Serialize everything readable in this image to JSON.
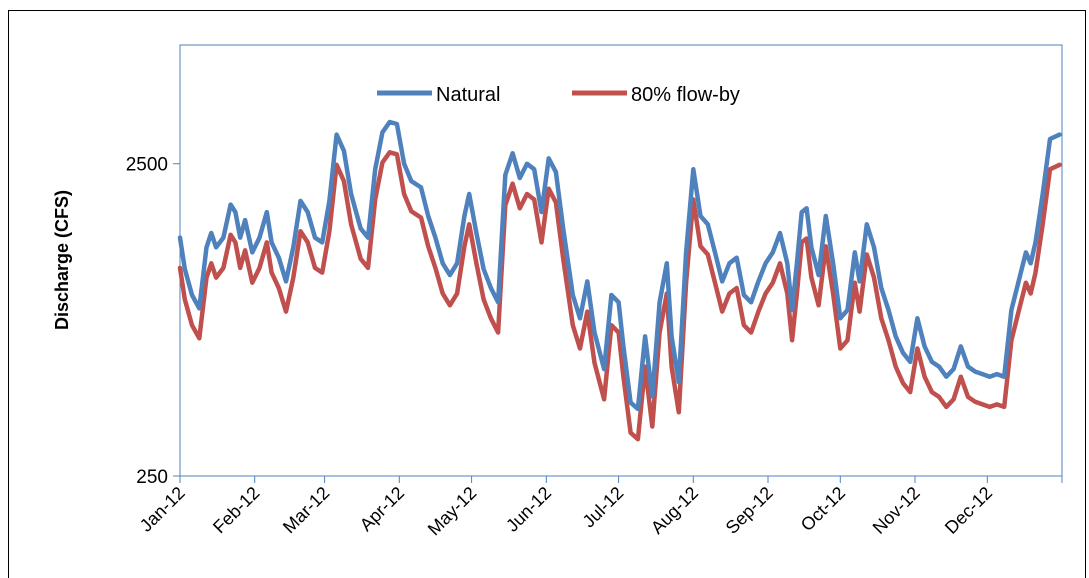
{
  "chart_data": {
    "type": "line",
    "title": "",
    "xlabel": "",
    "ylabel": "Discharge (CFS)",
    "y_scale": "log",
    "ylim": [
      250,
      6000
    ],
    "y_ticks": [
      250,
      2500
    ],
    "y_tick_labels": [
      "250",
      "2500"
    ],
    "grid": false,
    "legend_position": "top-center",
    "x_tick_labels": [
      "Jan-12",
      "Feb-12",
      "Mar-12",
      "Apr-12",
      "May-12",
      "Jun-12",
      "Jul-12",
      "Aug-12",
      "Sep-12",
      "Oct-12",
      "Nov-12",
      "Dec-12"
    ],
    "x_tick_dates": [
      "2012-01-01",
      "2012-02-01",
      "2012-03-01",
      "2012-04-01",
      "2012-05-01",
      "2012-06-01",
      "2012-07-01",
      "2012-08-01",
      "2012-09-01",
      "2012-10-01",
      "2012-11-01",
      "2012-12-01",
      "2013-01-01"
    ],
    "series": [
      {
        "name": "Natural",
        "color": "#4F81BD",
        "points": [
          [
            "2012-01-01",
            1450
          ],
          [
            "2012-01-03",
            1150
          ],
          [
            "2012-01-06",
            950
          ],
          [
            "2012-01-09",
            860
          ],
          [
            "2012-01-12",
            1350
          ],
          [
            "2012-01-14",
            1500
          ],
          [
            "2012-01-16",
            1350
          ],
          [
            "2012-01-19",
            1450
          ],
          [
            "2012-01-22",
            1850
          ],
          [
            "2012-01-24",
            1750
          ],
          [
            "2012-01-26",
            1450
          ],
          [
            "2012-01-28",
            1650
          ],
          [
            "2012-01-31",
            1300
          ],
          [
            "2012-02-03",
            1450
          ],
          [
            "2012-02-06",
            1750
          ],
          [
            "2012-02-08",
            1400
          ],
          [
            "2012-02-11",
            1250
          ],
          [
            "2012-02-14",
            1050
          ],
          [
            "2012-02-17",
            1350
          ],
          [
            "2012-02-20",
            1900
          ],
          [
            "2012-02-23",
            1750
          ],
          [
            "2012-02-26",
            1450
          ],
          [
            "2012-02-29",
            1400
          ],
          [
            "2012-03-03",
            1900
          ],
          [
            "2012-03-06",
            3100
          ],
          [
            "2012-03-09",
            2750
          ],
          [
            "2012-03-12",
            2000
          ],
          [
            "2012-03-16",
            1550
          ],
          [
            "2012-03-19",
            1450
          ],
          [
            "2012-03-22",
            2400
          ],
          [
            "2012-03-25",
            3150
          ],
          [
            "2012-03-28",
            3400
          ],
          [
            "2012-03-31",
            3350
          ],
          [
            "2012-04-03",
            2500
          ],
          [
            "2012-04-06",
            2200
          ],
          [
            "2012-04-10",
            2100
          ],
          [
            "2012-04-13",
            1700
          ],
          [
            "2012-04-16",
            1450
          ],
          [
            "2012-04-19",
            1200
          ],
          [
            "2012-04-22",
            1100
          ],
          [
            "2012-04-25",
            1200
          ],
          [
            "2012-04-28",
            1700
          ],
          [
            "2012-04-30",
            2000
          ],
          [
            "2012-05-03",
            1500
          ],
          [
            "2012-05-06",
            1150
          ],
          [
            "2012-05-09",
            1000
          ],
          [
            "2012-05-12",
            900
          ],
          [
            "2012-05-15",
            2300
          ],
          [
            "2012-05-18",
            2700
          ],
          [
            "2012-05-21",
            2250
          ],
          [
            "2012-05-24",
            2500
          ],
          [
            "2012-05-27",
            2400
          ],
          [
            "2012-05-30",
            1750
          ],
          [
            "2012-06-02",
            2600
          ],
          [
            "2012-06-05",
            2350
          ],
          [
            "2012-06-08",
            1550
          ],
          [
            "2012-06-12",
            950
          ],
          [
            "2012-06-15",
            800
          ],
          [
            "2012-06-18",
            1050
          ],
          [
            "2012-06-21",
            720
          ],
          [
            "2012-06-25",
            550
          ],
          [
            "2012-06-28",
            950
          ],
          [
            "2012-07-01",
            900
          ],
          [
            "2012-07-03",
            650
          ],
          [
            "2012-07-06",
            430
          ],
          [
            "2012-07-09",
            410
          ],
          [
            "2012-07-12",
            700
          ],
          [
            "2012-07-15",
            450
          ],
          [
            "2012-07-18",
            900
          ],
          [
            "2012-07-21",
            1200
          ],
          [
            "2012-07-23",
            700
          ],
          [
            "2012-07-26",
            500
          ],
          [
            "2012-07-29",
            1300
          ],
          [
            "2012-08-01",
            2400
          ],
          [
            "2012-08-04",
            1700
          ],
          [
            "2012-08-07",
            1600
          ],
          [
            "2012-08-10",
            1300
          ],
          [
            "2012-08-13",
            1050
          ],
          [
            "2012-08-16",
            1200
          ],
          [
            "2012-08-19",
            1250
          ],
          [
            "2012-08-22",
            950
          ],
          [
            "2012-08-25",
            900
          ],
          [
            "2012-08-28",
            1050
          ],
          [
            "2012-08-31",
            1200
          ],
          [
            "2012-09-03",
            1300
          ],
          [
            "2012-09-06",
            1500
          ],
          [
            "2012-09-09",
            1200
          ],
          [
            "2012-09-11",
            850
          ],
          [
            "2012-09-13",
            1200
          ],
          [
            "2012-09-15",
            1750
          ],
          [
            "2012-09-17",
            1800
          ],
          [
            "2012-09-19",
            1350
          ],
          [
            "2012-09-22",
            1100
          ],
          [
            "2012-09-25",
            1700
          ],
          [
            "2012-09-28",
            1200
          ],
          [
            "2012-10-01",
            800
          ],
          [
            "2012-10-04",
            850
          ],
          [
            "2012-10-07",
            1300
          ],
          [
            "2012-10-09",
            1050
          ],
          [
            "2012-10-12",
            1600
          ],
          [
            "2012-10-15",
            1350
          ],
          [
            "2012-10-18",
            1000
          ],
          [
            "2012-10-21",
            850
          ],
          [
            "2012-10-24",
            700
          ],
          [
            "2012-10-27",
            620
          ],
          [
            "2012-10-30",
            580
          ],
          [
            "2012-11-02",
            800
          ],
          [
            "2012-11-05",
            650
          ],
          [
            "2012-11-08",
            580
          ],
          [
            "2012-11-11",
            560
          ],
          [
            "2012-11-14",
            520
          ],
          [
            "2012-11-17",
            550
          ],
          [
            "2012-11-20",
            650
          ],
          [
            "2012-11-23",
            560
          ],
          [
            "2012-11-26",
            540
          ],
          [
            "2012-11-29",
            530
          ],
          [
            "2012-12-02",
            520
          ],
          [
            "2012-12-05",
            530
          ],
          [
            "2012-12-08",
            520
          ],
          [
            "2012-12-11",
            850
          ],
          [
            "2012-12-14",
            1050
          ],
          [
            "2012-12-17",
            1300
          ],
          [
            "2012-12-19",
            1200
          ],
          [
            "2012-12-21",
            1400
          ],
          [
            "2012-12-24",
            2000
          ],
          [
            "2012-12-27",
            3000
          ],
          [
            "2012-12-31",
            3100
          ]
        ]
      },
      {
        "name": "80% flow-by",
        "color": "#C0504D",
        "points": [
          [
            "2012-01-01",
            1160
          ],
          [
            "2012-01-03",
            920
          ],
          [
            "2012-01-06",
            760
          ],
          [
            "2012-01-09",
            690
          ],
          [
            "2012-01-12",
            1080
          ],
          [
            "2012-01-14",
            1200
          ],
          [
            "2012-01-16",
            1080
          ],
          [
            "2012-01-19",
            1160
          ],
          [
            "2012-01-22",
            1480
          ],
          [
            "2012-01-24",
            1400
          ],
          [
            "2012-01-26",
            1160
          ],
          [
            "2012-01-28",
            1320
          ],
          [
            "2012-01-31",
            1040
          ],
          [
            "2012-02-03",
            1160
          ],
          [
            "2012-02-06",
            1400
          ],
          [
            "2012-02-08",
            1120
          ],
          [
            "2012-02-11",
            1000
          ],
          [
            "2012-02-14",
            840
          ],
          [
            "2012-02-17",
            1080
          ],
          [
            "2012-02-20",
            1520
          ],
          [
            "2012-02-23",
            1400
          ],
          [
            "2012-02-26",
            1160
          ],
          [
            "2012-02-29",
            1120
          ],
          [
            "2012-03-03",
            1520
          ],
          [
            "2012-03-06",
            2480
          ],
          [
            "2012-03-09",
            2200
          ],
          [
            "2012-03-12",
            1600
          ],
          [
            "2012-03-16",
            1240
          ],
          [
            "2012-03-19",
            1160
          ],
          [
            "2012-03-22",
            1920
          ],
          [
            "2012-03-25",
            2520
          ],
          [
            "2012-03-28",
            2720
          ],
          [
            "2012-03-31",
            2680
          ],
          [
            "2012-04-03",
            2000
          ],
          [
            "2012-04-06",
            1760
          ],
          [
            "2012-04-10",
            1680
          ],
          [
            "2012-04-13",
            1360
          ],
          [
            "2012-04-16",
            1160
          ],
          [
            "2012-04-19",
            960
          ],
          [
            "2012-04-22",
            880
          ],
          [
            "2012-04-25",
            960
          ],
          [
            "2012-04-28",
            1360
          ],
          [
            "2012-04-30",
            1600
          ],
          [
            "2012-05-03",
            1200
          ],
          [
            "2012-05-06",
            920
          ],
          [
            "2012-05-09",
            800
          ],
          [
            "2012-05-12",
            720
          ],
          [
            "2012-05-15",
            1840
          ],
          [
            "2012-05-18",
            2160
          ],
          [
            "2012-05-21",
            1800
          ],
          [
            "2012-05-24",
            2000
          ],
          [
            "2012-05-27",
            1920
          ],
          [
            "2012-05-30",
            1400
          ],
          [
            "2012-06-02",
            2080
          ],
          [
            "2012-06-05",
            1880
          ],
          [
            "2012-06-08",
            1240
          ],
          [
            "2012-06-12",
            760
          ],
          [
            "2012-06-15",
            640
          ],
          [
            "2012-06-18",
            840
          ],
          [
            "2012-06-21",
            576
          ],
          [
            "2012-06-25",
            440
          ],
          [
            "2012-06-28",
            760
          ],
          [
            "2012-07-01",
            720
          ],
          [
            "2012-07-03",
            520
          ],
          [
            "2012-07-06",
            344
          ],
          [
            "2012-07-09",
            328
          ],
          [
            "2012-07-12",
            560
          ],
          [
            "2012-07-15",
            360
          ],
          [
            "2012-07-18",
            720
          ],
          [
            "2012-07-21",
            960
          ],
          [
            "2012-07-23",
            560
          ],
          [
            "2012-07-26",
            400
          ],
          [
            "2012-07-29",
            1040
          ],
          [
            "2012-08-01",
            1920
          ],
          [
            "2012-08-04",
            1360
          ],
          [
            "2012-08-07",
            1280
          ],
          [
            "2012-08-10",
            1040
          ],
          [
            "2012-08-13",
            840
          ],
          [
            "2012-08-16",
            960
          ],
          [
            "2012-08-19",
            1000
          ],
          [
            "2012-08-22",
            760
          ],
          [
            "2012-08-25",
            720
          ],
          [
            "2012-08-28",
            840
          ],
          [
            "2012-08-31",
            960
          ],
          [
            "2012-09-03",
            1040
          ],
          [
            "2012-09-06",
            1200
          ],
          [
            "2012-09-09",
            960
          ],
          [
            "2012-09-11",
            680
          ],
          [
            "2012-09-13",
            960
          ],
          [
            "2012-09-15",
            1400
          ],
          [
            "2012-09-17",
            1440
          ],
          [
            "2012-09-19",
            1080
          ],
          [
            "2012-09-22",
            880
          ],
          [
            "2012-09-25",
            1360
          ],
          [
            "2012-09-28",
            960
          ],
          [
            "2012-10-01",
            640
          ],
          [
            "2012-10-04",
            680
          ],
          [
            "2012-10-07",
            1040
          ],
          [
            "2012-10-09",
            840
          ],
          [
            "2012-10-12",
            1280
          ],
          [
            "2012-10-15",
            1080
          ],
          [
            "2012-10-18",
            800
          ],
          [
            "2012-10-21",
            680
          ],
          [
            "2012-10-24",
            560
          ],
          [
            "2012-10-27",
            496
          ],
          [
            "2012-10-30",
            464
          ],
          [
            "2012-11-02",
            640
          ],
          [
            "2012-11-05",
            520
          ],
          [
            "2012-11-08",
            464
          ],
          [
            "2012-11-11",
            448
          ],
          [
            "2012-11-14",
            416
          ],
          [
            "2012-11-17",
            440
          ],
          [
            "2012-11-20",
            520
          ],
          [
            "2012-11-23",
            448
          ],
          [
            "2012-11-26",
            432
          ],
          [
            "2012-11-29",
            424
          ],
          [
            "2012-12-02",
            416
          ],
          [
            "2012-12-05",
            424
          ],
          [
            "2012-12-08",
            416
          ],
          [
            "2012-12-11",
            680
          ],
          [
            "2012-12-14",
            840
          ],
          [
            "2012-12-17",
            1040
          ],
          [
            "2012-12-19",
            960
          ],
          [
            "2012-12-21",
            1120
          ],
          [
            "2012-12-24",
            1600
          ],
          [
            "2012-12-27",
            2400
          ],
          [
            "2012-12-31",
            2480
          ]
        ]
      }
    ]
  }
}
